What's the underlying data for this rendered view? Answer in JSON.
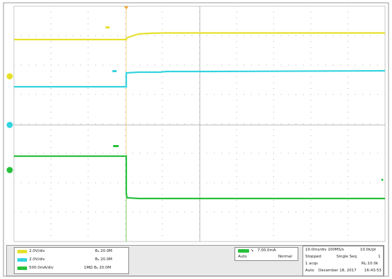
{
  "colors": {
    "ch1": "#e6e02c",
    "ch2": "#33d3df",
    "ch3": "#27c03a",
    "grid": "#c8c8c8",
    "trigger": "#f0a020",
    "panel": "#e9e9e9"
  },
  "channels": [
    {
      "id": "ch1",
      "scale": "2.0V/div",
      "offset_label": "Bₒ 20.0M"
    },
    {
      "id": "ch2",
      "scale": "2.0V/div",
      "offset_label": "Bₒ 20.0M"
    },
    {
      "id": "ch3",
      "scale": "500.0mA/div",
      "offset_label": "1MΩ Bₒ 20.0M"
    }
  ],
  "trigger": {
    "level": "7.00.0mA",
    "mode": "Normal",
    "mode_label": "Auto"
  },
  "timebase": {
    "time_per_div": "10.0ms/div 100MS/s",
    "record_length": "10.0k/pt",
    "stopped": "Stopped",
    "single_seq": "Single Seq",
    "acqs": "1 acqs",
    "rl": "RL:10.0k",
    "mode": "Auto",
    "date": "December 18, 2017",
    "time": "16:43:53",
    "counter": "1"
  },
  "waveform_icons": [
    "channel-1-marker-icon",
    "channel-2-marker-icon",
    "channel-3-marker-icon",
    "trigger-marker-icon"
  ]
}
